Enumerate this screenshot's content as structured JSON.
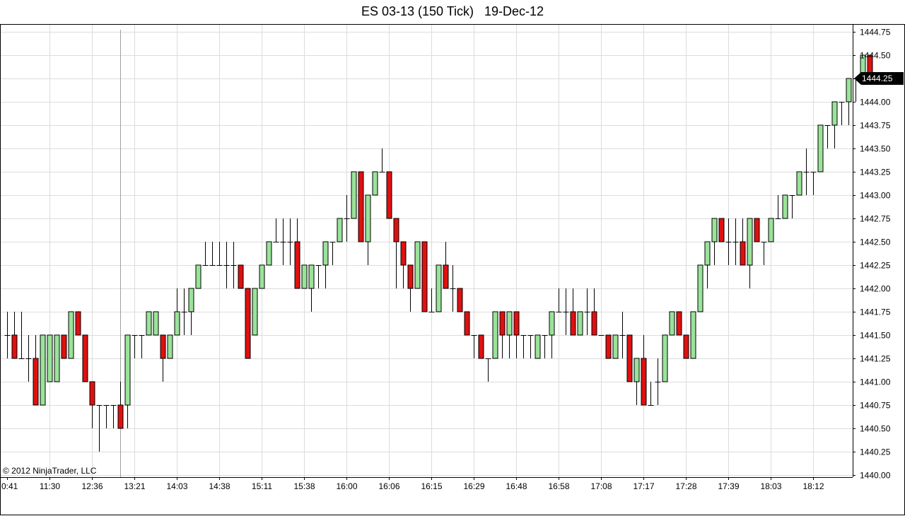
{
  "chart_data": {
    "type": "candlestick",
    "title": "ES 03-13 (150 Tick)   19-Dec-12",
    "copyright": "© 2012 NinjaTrader, LLC",
    "last_price_label": "1444.25",
    "grid": true,
    "ylim": [
      1440.0,
      1444.8
    ],
    "y_ticks": [
      "1440.00",
      "1440.25",
      "1440.50",
      "1440.75",
      "1441.00",
      "1441.25",
      "1441.50",
      "1441.75",
      "1442.00",
      "1442.25",
      "1442.50",
      "1442.75",
      "1443.00",
      "1443.25",
      "1443.50",
      "1443.75",
      "1444.00",
      "1444.25",
      "1444.50",
      "1444.75"
    ],
    "x_ticks": [
      {
        "label": "0:41",
        "bar": 0
      },
      {
        "label": "11:30",
        "bar": 6
      },
      {
        "label": "12:36",
        "bar": 12
      },
      {
        "label": "13:21",
        "bar": 18
      },
      {
        "label": "14:03",
        "bar": 24
      },
      {
        "label": "14:38",
        "bar": 30
      },
      {
        "label": "15:11",
        "bar": 36
      },
      {
        "label": "15:38",
        "bar": 42
      },
      {
        "label": "16:00",
        "bar": 48
      },
      {
        "label": "16:06",
        "bar": 54
      },
      {
        "label": "16:15",
        "bar": 60
      },
      {
        "label": "16:29",
        "bar": 66
      },
      {
        "label": "16:48",
        "bar": 72
      },
      {
        "label": "16:58",
        "bar": 78
      },
      {
        "label": "17:08",
        "bar": 84
      },
      {
        "label": "17:17",
        "bar": 90
      },
      {
        "label": "17:28",
        "bar": 96
      },
      {
        "label": "17:39",
        "bar": 102
      },
      {
        "label": "18:03",
        "bar": 108
      },
      {
        "label": "18:12",
        "bar": 114
      }
    ],
    "colors": {
      "up": "#9ae39a",
      "down": "#e01010",
      "outline": "#000000",
      "grid": "#dcdcdc",
      "label_bg": "#000000"
    },
    "candles": [
      {
        "o": 1441.5,
        "h": 1441.75,
        "l": 1441.25,
        "c": 1441.5
      },
      {
        "o": 1441.5,
        "h": 1441.75,
        "l": 1441.25,
        "c": 1441.25
      },
      {
        "o": 1441.25,
        "h": 1441.75,
        "l": 1441.25,
        "c": 1441.25
      },
      {
        "o": 1441.25,
        "h": 1441.5,
        "l": 1441.0,
        "c": 1441.25
      },
      {
        "o": 1441.25,
        "h": 1441.5,
        "l": 1440.75,
        "c": 1440.75
      },
      {
        "o": 1440.75,
        "h": 1441.5,
        "l": 1440.75,
        "c": 1441.5
      },
      {
        "o": 1441.0,
        "h": 1441.5,
        "l": 1441.0,
        "c": 1441.5
      },
      {
        "o": 1441.0,
        "h": 1441.5,
        "l": 1441.0,
        "c": 1441.5
      },
      {
        "o": 1441.5,
        "h": 1441.5,
        "l": 1441.25,
        "c": 1441.25
      },
      {
        "o": 1441.25,
        "h": 1441.75,
        "l": 1441.25,
        "c": 1441.75
      },
      {
        "o": 1441.75,
        "h": 1441.75,
        "l": 1441.5,
        "c": 1441.5
      },
      {
        "o": 1441.5,
        "h": 1441.5,
        "l": 1441.0,
        "c": 1441.0
      },
      {
        "o": 1441.0,
        "h": 1441.0,
        "l": 1440.5,
        "c": 1440.75
      },
      {
        "o": 1440.75,
        "h": 1440.75,
        "l": 1440.25,
        "c": 1440.75
      },
      {
        "o": 1440.75,
        "h": 1440.75,
        "l": 1440.5,
        "c": 1440.75
      },
      {
        "o": 1440.75,
        "h": 1440.75,
        "l": 1440.5,
        "c": 1440.75
      },
      {
        "o": 1440.75,
        "h": 1441.0,
        "l": 1440.5,
        "c": 1440.5
      },
      {
        "o": 1440.75,
        "h": 1441.5,
        "l": 1440.5,
        "c": 1441.5
      },
      {
        "o": 1441.5,
        "h": 1441.5,
        "l": 1441.25,
        "c": 1441.5
      },
      {
        "o": 1441.5,
        "h": 1441.5,
        "l": 1441.25,
        "c": 1441.5
      },
      {
        "o": 1441.5,
        "h": 1441.75,
        "l": 1441.5,
        "c": 1441.75
      },
      {
        "o": 1441.5,
        "h": 1441.75,
        "l": 1441.5,
        "c": 1441.75
      },
      {
        "o": 1441.5,
        "h": 1441.5,
        "l": 1441.0,
        "c": 1441.25
      },
      {
        "o": 1441.25,
        "h": 1441.5,
        "l": 1441.25,
        "c": 1441.5
      },
      {
        "o": 1441.5,
        "h": 1442.0,
        "l": 1441.5,
        "c": 1441.75
      },
      {
        "o": 1441.75,
        "h": 1442.0,
        "l": 1441.5,
        "c": 1441.75
      },
      {
        "o": 1441.75,
        "h": 1442.0,
        "l": 1441.5,
        "c": 1442.0
      },
      {
        "o": 1442.0,
        "h": 1442.25,
        "l": 1442.0,
        "c": 1442.25
      },
      {
        "o": 1442.25,
        "h": 1442.5,
        "l": 1442.25,
        "c": 1442.25
      },
      {
        "o": 1442.25,
        "h": 1442.5,
        "l": 1442.25,
        "c": 1442.25
      },
      {
        "o": 1442.25,
        "h": 1442.5,
        "l": 1442.25,
        "c": 1442.25
      },
      {
        "o": 1442.25,
        "h": 1442.5,
        "l": 1442.0,
        "c": 1442.25
      },
      {
        "o": 1442.25,
        "h": 1442.5,
        "l": 1442.0,
        "c": 1442.25
      },
      {
        "o": 1442.25,
        "h": 1442.25,
        "l": 1442.0,
        "c": 1442.0
      },
      {
        "o": 1442.0,
        "h": 1442.0,
        "l": 1441.25,
        "c": 1441.25
      },
      {
        "o": 1441.5,
        "h": 1442.0,
        "l": 1441.5,
        "c": 1442.0
      },
      {
        "o": 1442.0,
        "h": 1442.25,
        "l": 1442.0,
        "c": 1442.25
      },
      {
        "o": 1442.25,
        "h": 1442.5,
        "l": 1442.25,
        "c": 1442.5
      },
      {
        "o": 1442.5,
        "h": 1442.75,
        "l": 1442.5,
        "c": 1442.5
      },
      {
        "o": 1442.5,
        "h": 1442.75,
        "l": 1442.25,
        "c": 1442.5
      },
      {
        "o": 1442.5,
        "h": 1442.75,
        "l": 1442.25,
        "c": 1442.5
      },
      {
        "o": 1442.5,
        "h": 1442.75,
        "l": 1442.0,
        "c": 1442.0
      },
      {
        "o": 1442.0,
        "h": 1442.25,
        "l": 1442.0,
        "c": 1442.25
      },
      {
        "o": 1442.0,
        "h": 1442.25,
        "l": 1441.75,
        "c": 1442.25
      },
      {
        "o": 1442.25,
        "h": 1442.25,
        "l": 1442.0,
        "c": 1442.25
      },
      {
        "o": 1442.25,
        "h": 1442.5,
        "l": 1442.0,
        "c": 1442.5
      },
      {
        "o": 1442.5,
        "h": 1442.5,
        "l": 1442.25,
        "c": 1442.5
      },
      {
        "o": 1442.5,
        "h": 1442.75,
        "l": 1442.5,
        "c": 1442.75
      },
      {
        "o": 1442.75,
        "h": 1443.0,
        "l": 1442.5,
        "c": 1442.75
      },
      {
        "o": 1442.75,
        "h": 1443.25,
        "l": 1442.75,
        "c": 1443.25
      },
      {
        "o": 1443.25,
        "h": 1443.25,
        "l": 1442.5,
        "c": 1442.5
      },
      {
        "o": 1442.5,
        "h": 1443.0,
        "l": 1442.25,
        "c": 1443.0
      },
      {
        "o": 1443.0,
        "h": 1443.25,
        "l": 1443.0,
        "c": 1443.25
      },
      {
        "o": 1443.25,
        "h": 1443.5,
        "l": 1443.25,
        "c": 1443.25
      },
      {
        "o": 1443.25,
        "h": 1443.25,
        "l": 1442.75,
        "c": 1442.75
      },
      {
        "o": 1442.75,
        "h": 1442.75,
        "l": 1442.0,
        "c": 1442.5
      },
      {
        "o": 1442.5,
        "h": 1442.5,
        "l": 1442.0,
        "c": 1442.25
      },
      {
        "o": 1442.25,
        "h": 1442.25,
        "l": 1441.75,
        "c": 1442.0
      },
      {
        "o": 1442.0,
        "h": 1442.5,
        "l": 1442.0,
        "c": 1442.5
      },
      {
        "o": 1442.5,
        "h": 1442.5,
        "l": 1441.75,
        "c": 1441.75
      },
      {
        "o": 1441.75,
        "h": 1442.0,
        "l": 1441.75,
        "c": 1441.75
      },
      {
        "o": 1441.75,
        "h": 1442.25,
        "l": 1441.75,
        "c": 1442.25
      },
      {
        "o": 1442.25,
        "h": 1442.5,
        "l": 1442.0,
        "c": 1442.0
      },
      {
        "o": 1442.0,
        "h": 1442.25,
        "l": 1441.75,
        "c": 1442.0
      },
      {
        "o": 1442.0,
        "h": 1442.0,
        "l": 1441.75,
        "c": 1441.75
      },
      {
        "o": 1441.75,
        "h": 1441.75,
        "l": 1441.5,
        "c": 1441.5
      },
      {
        "o": 1441.5,
        "h": 1441.5,
        "l": 1441.25,
        "c": 1441.5
      },
      {
        "o": 1441.5,
        "h": 1441.5,
        "l": 1441.25,
        "c": 1441.25
      },
      {
        "o": 1441.25,
        "h": 1441.25,
        "l": 1441.0,
        "c": 1441.25
      },
      {
        "o": 1441.25,
        "h": 1441.75,
        "l": 1441.25,
        "c": 1441.75
      },
      {
        "o": 1441.75,
        "h": 1441.75,
        "l": 1441.25,
        "c": 1441.5
      },
      {
        "o": 1441.5,
        "h": 1441.75,
        "l": 1441.25,
        "c": 1441.75
      },
      {
        "o": 1441.75,
        "h": 1441.75,
        "l": 1441.25,
        "c": 1441.5
      },
      {
        "o": 1441.5,
        "h": 1441.5,
        "l": 1441.25,
        "c": 1441.5
      },
      {
        "o": 1441.5,
        "h": 1441.5,
        "l": 1441.25,
        "c": 1441.5
      },
      {
        "o": 1441.25,
        "h": 1441.5,
        "l": 1441.25,
        "c": 1441.5
      },
      {
        "o": 1441.5,
        "h": 1441.5,
        "l": 1441.25,
        "c": 1441.5
      },
      {
        "o": 1441.5,
        "h": 1441.75,
        "l": 1441.25,
        "c": 1441.75
      },
      {
        "o": 1441.75,
        "h": 1442.0,
        "l": 1441.75,
        "c": 1441.75
      },
      {
        "o": 1441.75,
        "h": 1442.0,
        "l": 1441.5,
        "c": 1441.75
      },
      {
        "o": 1441.75,
        "h": 1442.0,
        "l": 1441.5,
        "c": 1441.5
      },
      {
        "o": 1441.5,
        "h": 1441.75,
        "l": 1441.5,
        "c": 1441.75
      },
      {
        "o": 1441.75,
        "h": 1442.0,
        "l": 1441.5,
        "c": 1441.75
      },
      {
        "o": 1441.75,
        "h": 1442.0,
        "l": 1441.5,
        "c": 1441.5
      },
      {
        "o": 1441.5,
        "h": 1441.5,
        "l": 1441.5,
        "c": 1441.5
      },
      {
        "o": 1441.5,
        "h": 1441.5,
        "l": 1441.25,
        "c": 1441.25
      },
      {
        "o": 1441.25,
        "h": 1441.5,
        "l": 1441.25,
        "c": 1441.5
      },
      {
        "o": 1441.5,
        "h": 1441.75,
        "l": 1441.25,
        "c": 1441.5
      },
      {
        "o": 1441.5,
        "h": 1441.5,
        "l": 1441.0,
        "c": 1441.0
      },
      {
        "o": 1441.0,
        "h": 1441.25,
        "l": 1440.75,
        "c": 1441.25
      },
      {
        "o": 1441.25,
        "h": 1441.5,
        "l": 1440.75,
        "c": 1440.75
      },
      {
        "o": 1440.75,
        "h": 1441.0,
        "l": 1440.75,
        "c": 1440.75
      },
      {
        "o": 1441.0,
        "h": 1441.25,
        "l": 1440.75,
        "c": 1441.0
      },
      {
        "o": 1441.0,
        "h": 1441.5,
        "l": 1441.0,
        "c": 1441.5
      },
      {
        "o": 1441.5,
        "h": 1441.75,
        "l": 1441.5,
        "c": 1441.75
      },
      {
        "o": 1441.75,
        "h": 1441.75,
        "l": 1441.5,
        "c": 1441.5
      },
      {
        "o": 1441.5,
        "h": 1441.5,
        "l": 1441.25,
        "c": 1441.25
      },
      {
        "o": 1441.25,
        "h": 1441.75,
        "l": 1441.25,
        "c": 1441.75
      },
      {
        "o": 1441.75,
        "h": 1442.25,
        "l": 1441.75,
        "c": 1442.25
      },
      {
        "o": 1442.25,
        "h": 1442.5,
        "l": 1442.0,
        "c": 1442.5
      },
      {
        "o": 1442.5,
        "h": 1442.75,
        "l": 1442.25,
        "c": 1442.75
      },
      {
        "o": 1442.75,
        "h": 1442.75,
        "l": 1442.5,
        "c": 1442.5
      },
      {
        "o": 1442.5,
        "h": 1442.75,
        "l": 1442.25,
        "c": 1442.5
      },
      {
        "o": 1442.5,
        "h": 1442.75,
        "l": 1442.25,
        "c": 1442.5
      },
      {
        "o": 1442.5,
        "h": 1442.75,
        "l": 1442.25,
        "c": 1442.25
      },
      {
        "o": 1442.25,
        "h": 1442.75,
        "l": 1442.0,
        "c": 1442.75
      },
      {
        "o": 1442.75,
        "h": 1442.75,
        "l": 1442.5,
        "c": 1442.5
      },
      {
        "o": 1442.5,
        "h": 1442.5,
        "l": 1442.25,
        "c": 1442.5
      },
      {
        "o": 1442.5,
        "h": 1442.75,
        "l": 1442.5,
        "c": 1442.75
      },
      {
        "o": 1442.75,
        "h": 1443.0,
        "l": 1442.75,
        "c": 1442.75
      },
      {
        "o": 1442.75,
        "h": 1443.0,
        "l": 1442.75,
        "c": 1443.0
      },
      {
        "o": 1443.0,
        "h": 1443.0,
        "l": 1442.75,
        "c": 1443.0
      },
      {
        "o": 1443.0,
        "h": 1443.25,
        "l": 1443.0,
        "c": 1443.25
      },
      {
        "o": 1443.25,
        "h": 1443.5,
        "l": 1443.0,
        "c": 1443.25
      },
      {
        "o": 1443.25,
        "h": 1443.25,
        "l": 1443.0,
        "c": 1443.25
      },
      {
        "o": 1443.25,
        "h": 1443.75,
        "l": 1443.25,
        "c": 1443.75
      },
      {
        "o": 1443.75,
        "h": 1443.75,
        "l": 1443.5,
        "c": 1443.75
      },
      {
        "o": 1443.75,
        "h": 1444.0,
        "l": 1443.5,
        "c": 1444.0
      },
      {
        "o": 1444.0,
        "h": 1444.0,
        "l": 1443.75,
        "c": 1444.0
      },
      {
        "o": 1444.0,
        "h": 1444.25,
        "l": 1443.75,
        "c": 1444.25
      },
      {
        "o": 1444.25,
        "h": 1444.25,
        "l": 1444.0,
        "c": 1444.25
      },
      {
        "o": 1444.25,
        "h": 1444.5,
        "l": 1444.25,
        "c": 1444.5
      },
      {
        "o": 1444.5,
        "h": 1444.5,
        "l": 1444.25,
        "c": 1444.25
      }
    ]
  }
}
